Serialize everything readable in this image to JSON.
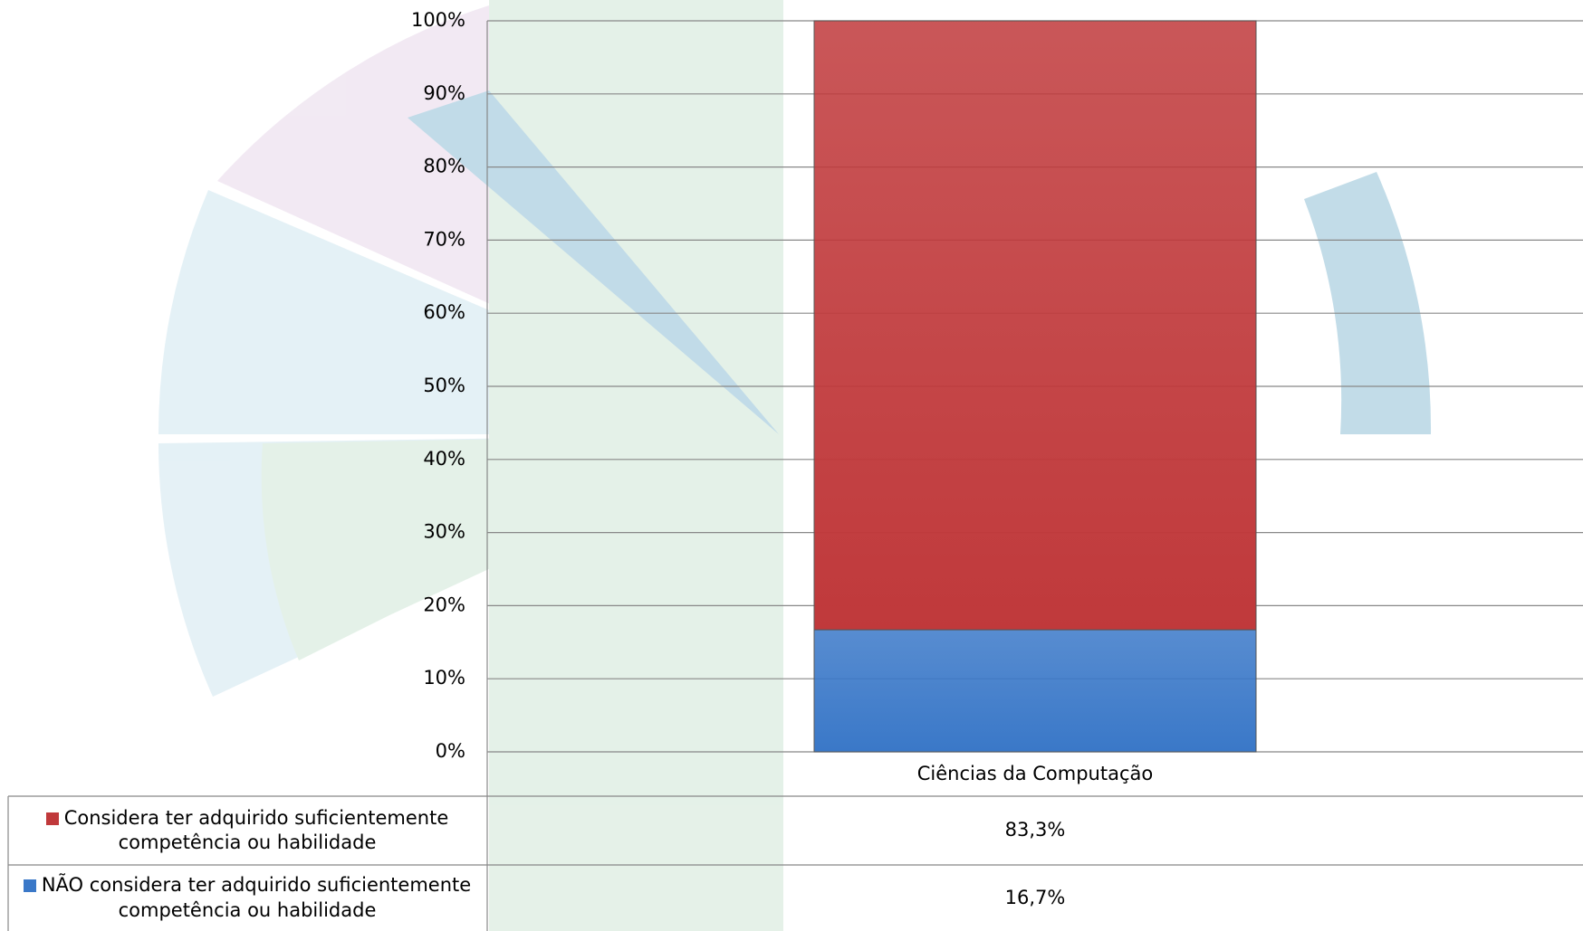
{
  "chart_data": {
    "type": "stacked_bar",
    "categories": [
      "Ciências da Computação"
    ],
    "series": [
      {
        "name": "Considera ter adquirido suficientemente competência ou habilidade",
        "color": "#c0393b",
        "values": [
          83.3
        ],
        "value_labels": [
          "83,3%"
        ]
      },
      {
        "name": "NÃO considera ter adquirido suficientemente competência ou habilidade",
        "color": "#3a78c8",
        "values": [
          16.7
        ],
        "value_labels": [
          "16,7%"
        ]
      }
    ],
    "stack_order": [
      1,
      0
    ],
    "ylim": [
      0,
      100
    ],
    "yticks": [
      {
        "value": 0,
        "label": "0%"
      },
      {
        "value": 10,
        "label": "10%"
      },
      {
        "value": 20,
        "label": "20%"
      },
      {
        "value": 30,
        "label": "30%"
      },
      {
        "value": 40,
        "label": "40%"
      },
      {
        "value": 50,
        "label": "50%"
      },
      {
        "value": 60,
        "label": "60%"
      },
      {
        "value": 70,
        "label": "70%"
      },
      {
        "value": 80,
        "label": "80%"
      },
      {
        "value": 90,
        "label": "90%"
      },
      {
        "value": 100,
        "label": "100%"
      }
    ],
    "grid": true
  }
}
